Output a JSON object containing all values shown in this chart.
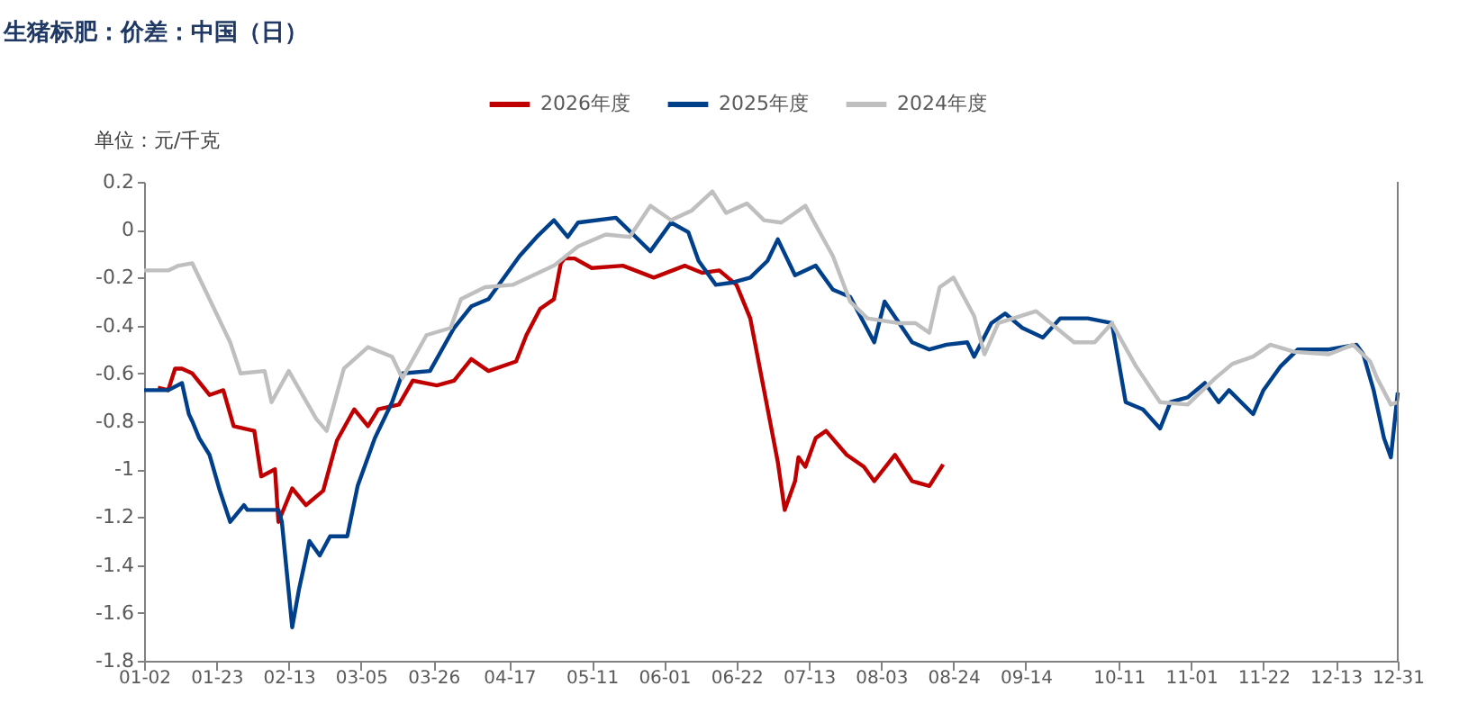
{
  "chart_data": {
    "type": "line",
    "title": "生猪标肥：价差：中国（日）",
    "ylabel": "单位：元/千克",
    "legend": "top",
    "grid": false,
    "marker": "none",
    "line_style": "solid",
    "xlim": [
      "--01-02",
      "--12-31"
    ],
    "xticks": [
      {
        "value": "--01-02",
        "label": "01-02"
      },
      {
        "value": "--01-23",
        "label": "01-23"
      },
      {
        "value": "--02-13",
        "label": "02-13"
      },
      {
        "value": "--03-05",
        "label": "03-05"
      },
      {
        "value": "--03-26",
        "label": "03-26"
      },
      {
        "value": "--04-17",
        "label": "04-17"
      },
      {
        "value": "--05-11",
        "label": "05-11"
      },
      {
        "value": "--06-01",
        "label": "06-01"
      },
      {
        "value": "--06-22",
        "label": "06-22"
      },
      {
        "value": "--07-13",
        "label": "07-13"
      },
      {
        "value": "--08-03",
        "label": "08-03"
      },
      {
        "value": "--08-24",
        "label": "08-24"
      },
      {
        "value": "--09-14",
        "label": "09-14"
      },
      {
        "value": "--10-11",
        "label": "10-11"
      },
      {
        "value": "--11-01",
        "label": "11-01"
      },
      {
        "value": "--11-22",
        "label": "11-22"
      },
      {
        "value": "--12-13",
        "label": "12-13"
      },
      {
        "value": "--12-31",
        "label": "12-31"
      }
    ],
    "ylim": [
      -1.8,
      0.2
    ],
    "yticks": [
      -1.8,
      -1.6,
      -1.4,
      -1.2,
      -1,
      -0.8,
      -0.6,
      -0.4,
      -0.2,
      0,
      0.2
    ],
    "series": [
      {
        "name": "2026年度",
        "color": "#c00000",
        "x": [
          "--01-06",
          "--01-09",
          "--01-11",
          "--01-13",
          "--01-16",
          "--01-21",
          "--01-25",
          "--01-28",
          "--02-03",
          "--02-05",
          "--02-09",
          "--02-10",
          "--02-14",
          "--02-18",
          "--02-23",
          "--02-27",
          "--03-03",
          "--03-07",
          "--03-10",
          "--03-16",
          "--03-20",
          "--03-27",
          "--04-01",
          "--04-06",
          "--04-11",
          "--04-19",
          "--04-22",
          "--04-26",
          "--04-30",
          "--05-02",
          "--05-03",
          "--05-06",
          "--05-11",
          "--05-20",
          "--05-29",
          "--06-07",
          "--06-12",
          "--06-17",
          "--06-22",
          "--06-26",
          "--06-30",
          "--07-04",
          "--07-06",
          "--07-09",
          "--07-10",
          "--07-12",
          "--07-15",
          "--07-18",
          "--07-24",
          "--07-29",
          "--08-01",
          "--08-07",
          "--08-12",
          "--08-17",
          "--08-21"
        ],
        "values": [
          -0.66,
          -0.67,
          -0.58,
          -0.58,
          -0.6,
          -0.69,
          -0.67,
          -0.82,
          -0.84,
          -1.03,
          -1.0,
          -1.22,
          -1.08,
          -1.15,
          -1.09,
          -0.88,
          -0.75,
          -0.82,
          -0.75,
          -0.73,
          -0.63,
          -0.65,
          -0.63,
          -0.54,
          -0.59,
          -0.55,
          -0.44,
          -0.33,
          -0.29,
          -0.14,
          -0.12,
          -0.12,
          -0.16,
          -0.15,
          -0.2,
          -0.15,
          -0.18,
          -0.17,
          -0.23,
          -0.37,
          -0.67,
          -0.97,
          -1.17,
          -1.05,
          -0.95,
          -0.99,
          -0.87,
          -0.84,
          -0.94,
          -0.99,
          -1.05,
          -0.94,
          -1.05,
          -1.07,
          -0.98
        ]
      },
      {
        "name": "2025年度",
        "color": "#003f8a",
        "x": [
          "--01-02",
          "--01-09",
          "--01-13",
          "--01-15",
          "--01-16",
          "--01-18",
          "--01-21",
          "--01-24",
          "--01-27",
          "--01-31",
          "--02-01",
          "--02-10",
          "--02-11",
          "--02-14",
          "--02-16",
          "--02-19",
          "--02-22",
          "--02-25",
          "--03-01",
          "--03-04",
          "--03-09",
          "--03-14",
          "--03-17",
          "--03-25",
          "--04-01",
          "--04-06",
          "--04-11",
          "--04-20",
          "--04-25",
          "--04-30",
          "--05-04",
          "--05-07",
          "--05-18",
          "--05-23",
          "--05-28",
          "--06-03",
          "--06-08",
          "--06-11",
          "--06-16",
          "--06-21",
          "--06-26",
          "--07-01",
          "--07-04",
          "--07-09",
          "--07-15",
          "--07-20",
          "--07-25",
          "--08-01",
          "--08-04",
          "--08-12",
          "--08-17",
          "--08-22",
          "--08-28",
          "--08-30",
          "--09-04",
          "--09-08",
          "--09-13",
          "--09-19",
          "--09-24",
          "--10-02",
          "--10-09",
          "--10-13",
          "--10-18",
          "--10-23",
          "--10-26",
          "--10-31",
          "--11-05",
          "--11-09",
          "--11-12",
          "--11-19",
          "--11-22",
          "--11-27",
          "--12-02",
          "--12-11",
          "--12-19",
          "--12-21",
          "--12-24",
          "--12-27",
          "--12-29",
          "--12-31"
        ],
        "values": [
          -0.67,
          -0.67,
          -0.64,
          -0.77,
          -0.8,
          -0.87,
          -0.94,
          -1.09,
          -1.22,
          -1.15,
          -1.17,
          -1.17,
          -1.22,
          -1.66,
          -1.5,
          -1.3,
          -1.36,
          -1.28,
          -1.28,
          -1.07,
          -0.87,
          -0.72,
          -0.6,
          -0.59,
          -0.41,
          -0.32,
          -0.29,
          -0.11,
          -0.03,
          0.04,
          -0.03,
          0.03,
          0.05,
          -0.02,
          -0.09,
          0.03,
          -0.01,
          -0.13,
          -0.23,
          -0.22,
          -0.2,
          -0.13,
          -0.04,
          -0.19,
          -0.15,
          -0.25,
          -0.28,
          -0.47,
          -0.3,
          -0.47,
          -0.5,
          -0.48,
          -0.47,
          -0.53,
          -0.39,
          -0.35,
          -0.41,
          -0.45,
          -0.37,
          -0.37,
          -0.39,
          -0.72,
          -0.75,
          -0.83,
          -0.72,
          -0.7,
          -0.64,
          -0.72,
          -0.67,
          -0.77,
          -0.67,
          -0.57,
          -0.5,
          -0.5,
          -0.48,
          -0.52,
          -0.67,
          -0.87,
          -0.95,
          -0.68
        ]
      },
      {
        "name": "2024年度",
        "color": "#bfbfbf",
        "x": [
          "--01-02",
          "--01-09",
          "--01-12",
          "--01-16",
          "--01-22",
          "--01-27",
          "--01-30",
          "--02-06",
          "--02-08",
          "--02-13",
          "--02-21",
          "--02-24",
          "--02-29",
          "--03-07",
          "--03-14",
          "--03-17",
          "--03-24",
          "--03-31",
          "--04-03",
          "--04-10",
          "--04-18",
          "--04-30",
          "--05-07",
          "--05-15",
          "--05-22",
          "--05-28",
          "--06-03",
          "--06-09",
          "--06-15",
          "--06-19",
          "--06-25",
          "--06-30",
          "--07-05",
          "--07-12",
          "--07-15",
          "--07-20",
          "--07-25",
          "--07-30",
          "--08-08",
          "--08-13",
          "--08-17",
          "--08-20",
          "--08-24",
          "--08-30",
          "--09-02",
          "--09-06",
          "--09-17",
          "--09-28",
          "--10-04",
          "--10-09",
          "--10-16",
          "--10-23",
          "--10-31",
          "--11-08",
          "--11-13",
          "--11-19",
          "--11-24",
          "--12-01",
          "--12-11",
          "--12-18",
          "--12-23",
          "--12-25",
          "--12-29",
          "--12-31"
        ],
        "values": [
          -0.17,
          -0.17,
          -0.15,
          -0.14,
          -0.32,
          -0.47,
          -0.6,
          -0.59,
          -0.72,
          -0.59,
          -0.79,
          -0.84,
          -0.58,
          -0.49,
          -0.53,
          -0.62,
          -0.44,
          -0.41,
          -0.29,
          -0.24,
          -0.23,
          -0.15,
          -0.07,
          -0.02,
          -0.03,
          0.1,
          0.04,
          0.08,
          0.16,
          0.07,
          0.11,
          0.04,
          0.03,
          0.1,
          0.02,
          -0.11,
          -0.3,
          -0.37,
          -0.39,
          -0.39,
          -0.43,
          -0.24,
          -0.2,
          -0.36,
          -0.52,
          -0.39,
          -0.34,
          -0.47,
          -0.47,
          -0.39,
          -0.57,
          -0.72,
          -0.73,
          -0.62,
          -0.56,
          -0.53,
          -0.48,
          -0.51,
          -0.52,
          -0.48,
          -0.55,
          -0.62,
          -0.73,
          -0.72
        ]
      }
    ]
  }
}
